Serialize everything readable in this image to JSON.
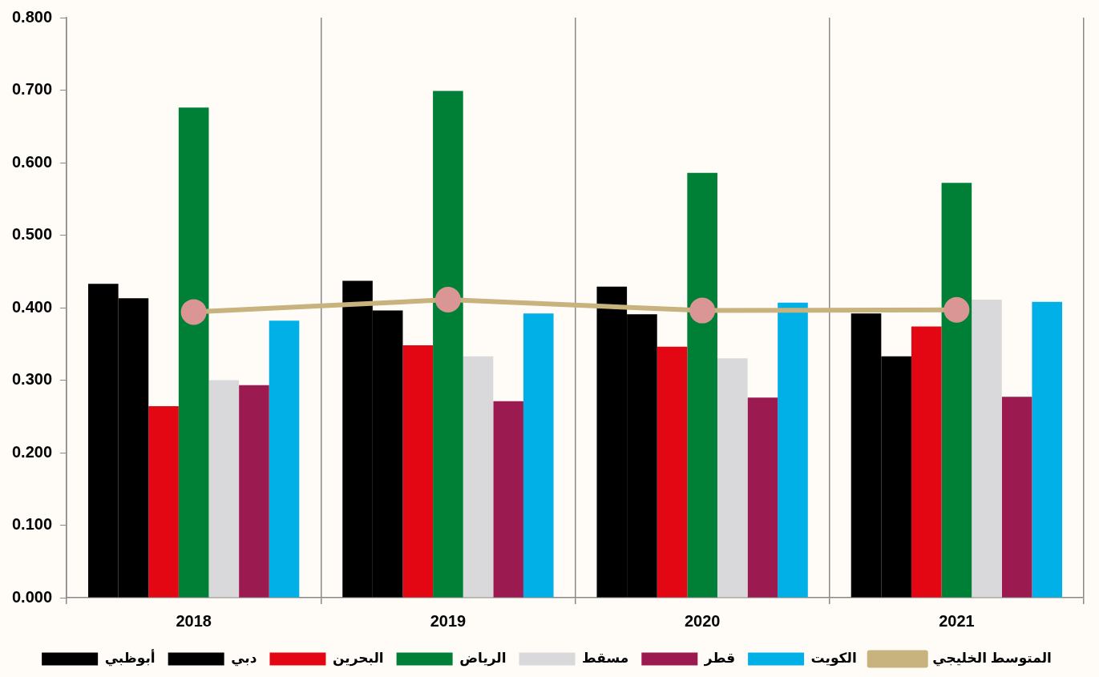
{
  "chart_data": {
    "type": "bar",
    "categories": [
      "2018",
      "2019",
      "2020",
      "2021"
    ],
    "series": [
      {
        "name": "أبوظبي",
        "color": "#000000",
        "values": [
          0.433,
          0.437,
          0.429,
          0.392
        ]
      },
      {
        "name": "دبي",
        "color": "#000000",
        "values": [
          0.413,
          0.396,
          0.391,
          0.333
        ]
      },
      {
        "name": "البحرين",
        "color": "#e30613",
        "values": [
          0.264,
          0.348,
          0.346,
          0.374
        ]
      },
      {
        "name": "الرياض",
        "color": "#008037",
        "values": [
          0.676,
          0.699,
          0.586,
          0.572
        ]
      },
      {
        "name": "مسقط",
        "color": "#d9d9db",
        "values": [
          0.3,
          0.333,
          0.33,
          0.411
        ]
      },
      {
        "name": "قطر",
        "color": "#9b1a4f",
        "values": [
          0.293,
          0.271,
          0.276,
          0.277
        ]
      },
      {
        "name": "الكويت",
        "color": "#00b0e6",
        "values": [
          0.382,
          0.392,
          0.407,
          0.408
        ]
      },
      {
        "name": "المتوسط الخليجي",
        "type": "line",
        "color": "#c8b27e",
        "values": [
          0.394,
          0.411,
          0.396,
          0.397
        ]
      }
    ],
    "ylim": [
      0,
      0.8
    ],
    "yticks": [
      {
        "value": 0,
        "label": "0.000"
      },
      {
        "value": 0.1,
        "label": "0.100"
      },
      {
        "value": 0.2,
        "label": "0.200"
      },
      {
        "value": 0.3,
        "label": "0.300"
      },
      {
        "value": 0.4,
        "label": "0.400"
      },
      {
        "value": 0.5,
        "label": "0.500"
      },
      {
        "value": 0.6,
        "label": "0.600"
      },
      {
        "value": 0.7,
        "label": "0.700"
      },
      {
        "value": 0.8,
        "label": "0.800"
      }
    ],
    "grid": "x",
    "legend": "bottom",
    "marker": "circle",
    "line_style": "solid"
  }
}
